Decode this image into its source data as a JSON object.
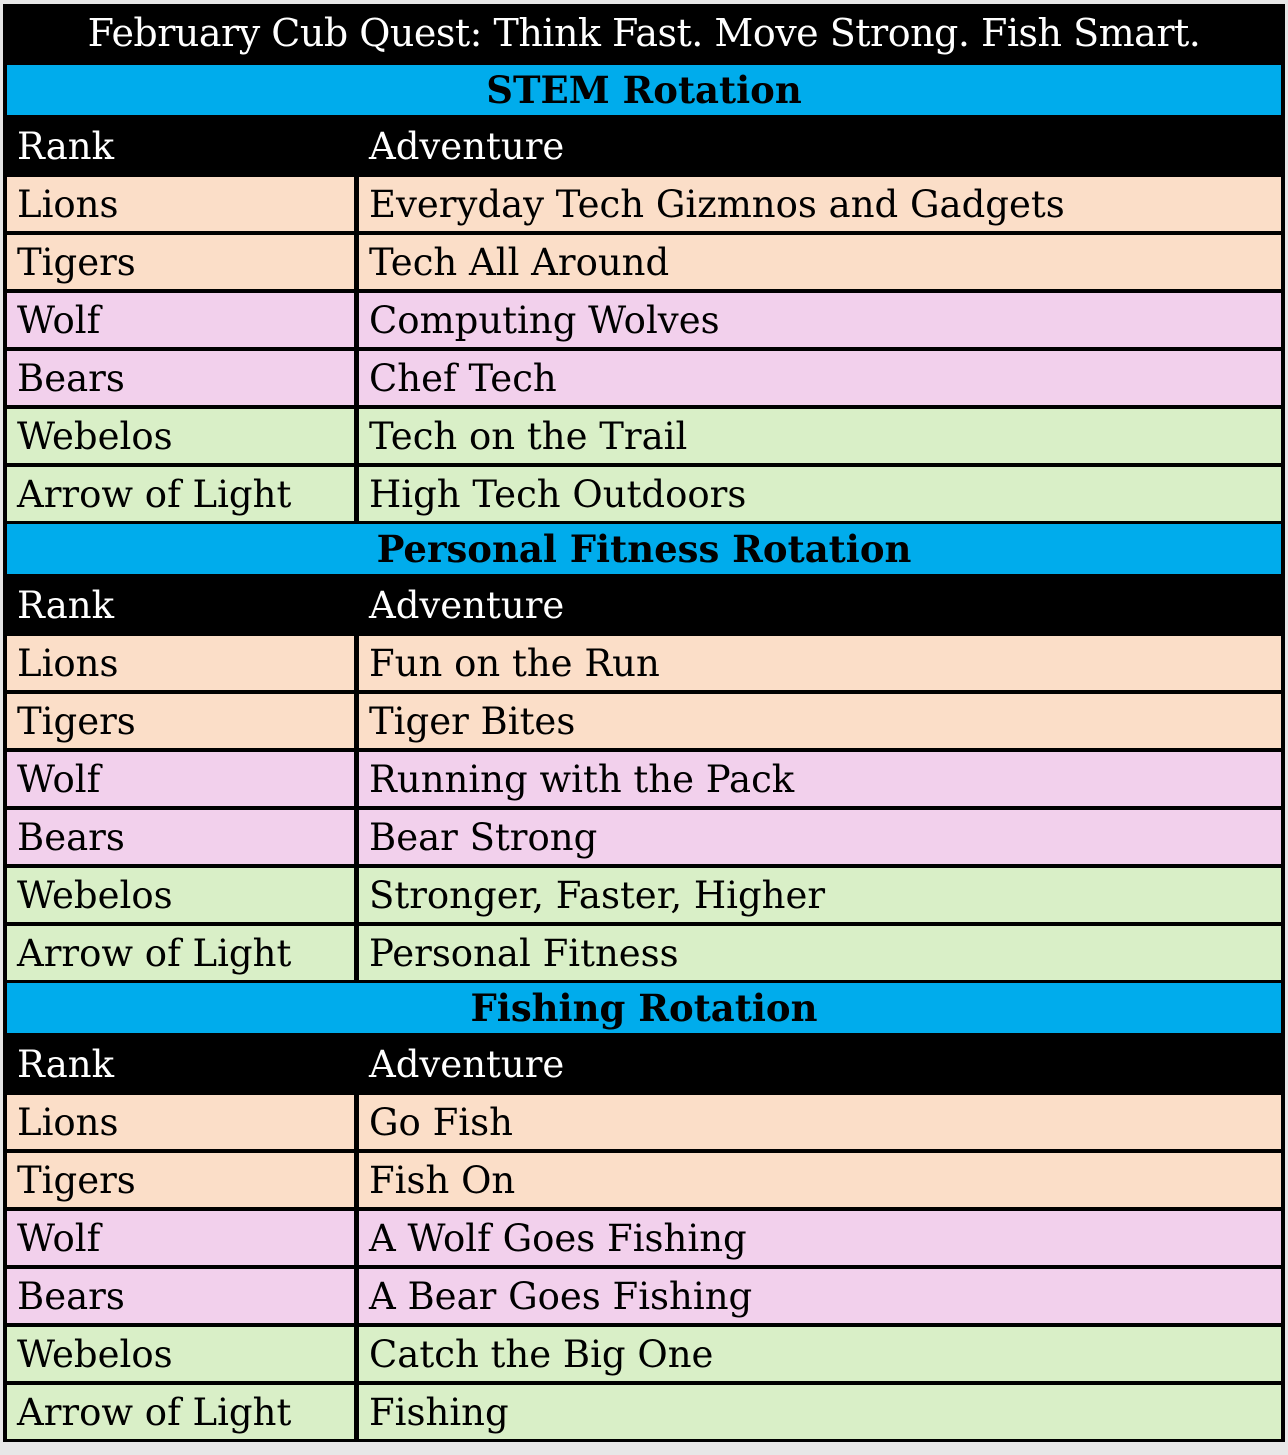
{
  "page": {
    "title": "February Cub Quest: Think Fast. Move Strong. Fish Smart."
  },
  "table": {
    "column_headers": [
      "Rank",
      "Adventure"
    ],
    "sections": [
      {
        "title": "STEM Rotation",
        "rows": [
          {
            "rank": "Lions",
            "adventure": "Everyday Tech Gizmnos and Gadgets",
            "tint": "peach"
          },
          {
            "rank": "Tigers",
            "adventure": "Tech All Around",
            "tint": "peach"
          },
          {
            "rank": "Wolf",
            "adventure": "Computing Wolves",
            "tint": "pink"
          },
          {
            "rank": "Bears",
            "adventure": "Chef Tech",
            "tint": "pink"
          },
          {
            "rank": "Webelos",
            "adventure": "Tech on the Trail",
            "tint": "green"
          },
          {
            "rank": "Arrow of Light",
            "adventure": "High Tech Outdoors",
            "tint": "green"
          }
        ]
      },
      {
        "title": "Personal Fitness Rotation",
        "rows": [
          {
            "rank": "Lions",
            "adventure": "Fun on the Run",
            "tint": "peach"
          },
          {
            "rank": "Tigers",
            "adventure": "Tiger Bites",
            "tint": "peach"
          },
          {
            "rank": "Wolf",
            "adventure": "Running with the Pack",
            "tint": "pink"
          },
          {
            "rank": "Bears",
            "adventure": "Bear Strong",
            "tint": "pink"
          },
          {
            "rank": "Webelos",
            "adventure": "Stronger, Faster, Higher",
            "tint": "green"
          },
          {
            "rank": "Arrow of Light",
            "adventure": "Personal Fitness",
            "tint": "green"
          }
        ]
      },
      {
        "title": "Fishing Rotation",
        "rows": [
          {
            "rank": "Lions",
            "adventure": "Go Fish",
            "tint": "peach"
          },
          {
            "rank": "Tigers",
            "adventure": "Fish On",
            "tint": "peach"
          },
          {
            "rank": "Wolf",
            "adventure": "A Wolf Goes Fishing",
            "tint": "pink"
          },
          {
            "rank": "Bears",
            "adventure": "A Bear Goes Fishing",
            "tint": "pink"
          },
          {
            "rank": "Webelos",
            "adventure": "Catch the Big One",
            "tint": "green"
          },
          {
            "rank": "Arrow of Light",
            "adventure": "Fishing",
            "tint": "green"
          }
        ]
      }
    ]
  },
  "colors": {
    "section_header_bg": "#00ACEC",
    "title_bar_bg": "#000000",
    "title_text": "#FFFFFF",
    "row_peach": "#FBDEC8",
    "row_pink": "#F2D0EC",
    "row_green": "#D9EFC7",
    "grid_line": "#000000",
    "page_bg": "#E7E7E7"
  }
}
